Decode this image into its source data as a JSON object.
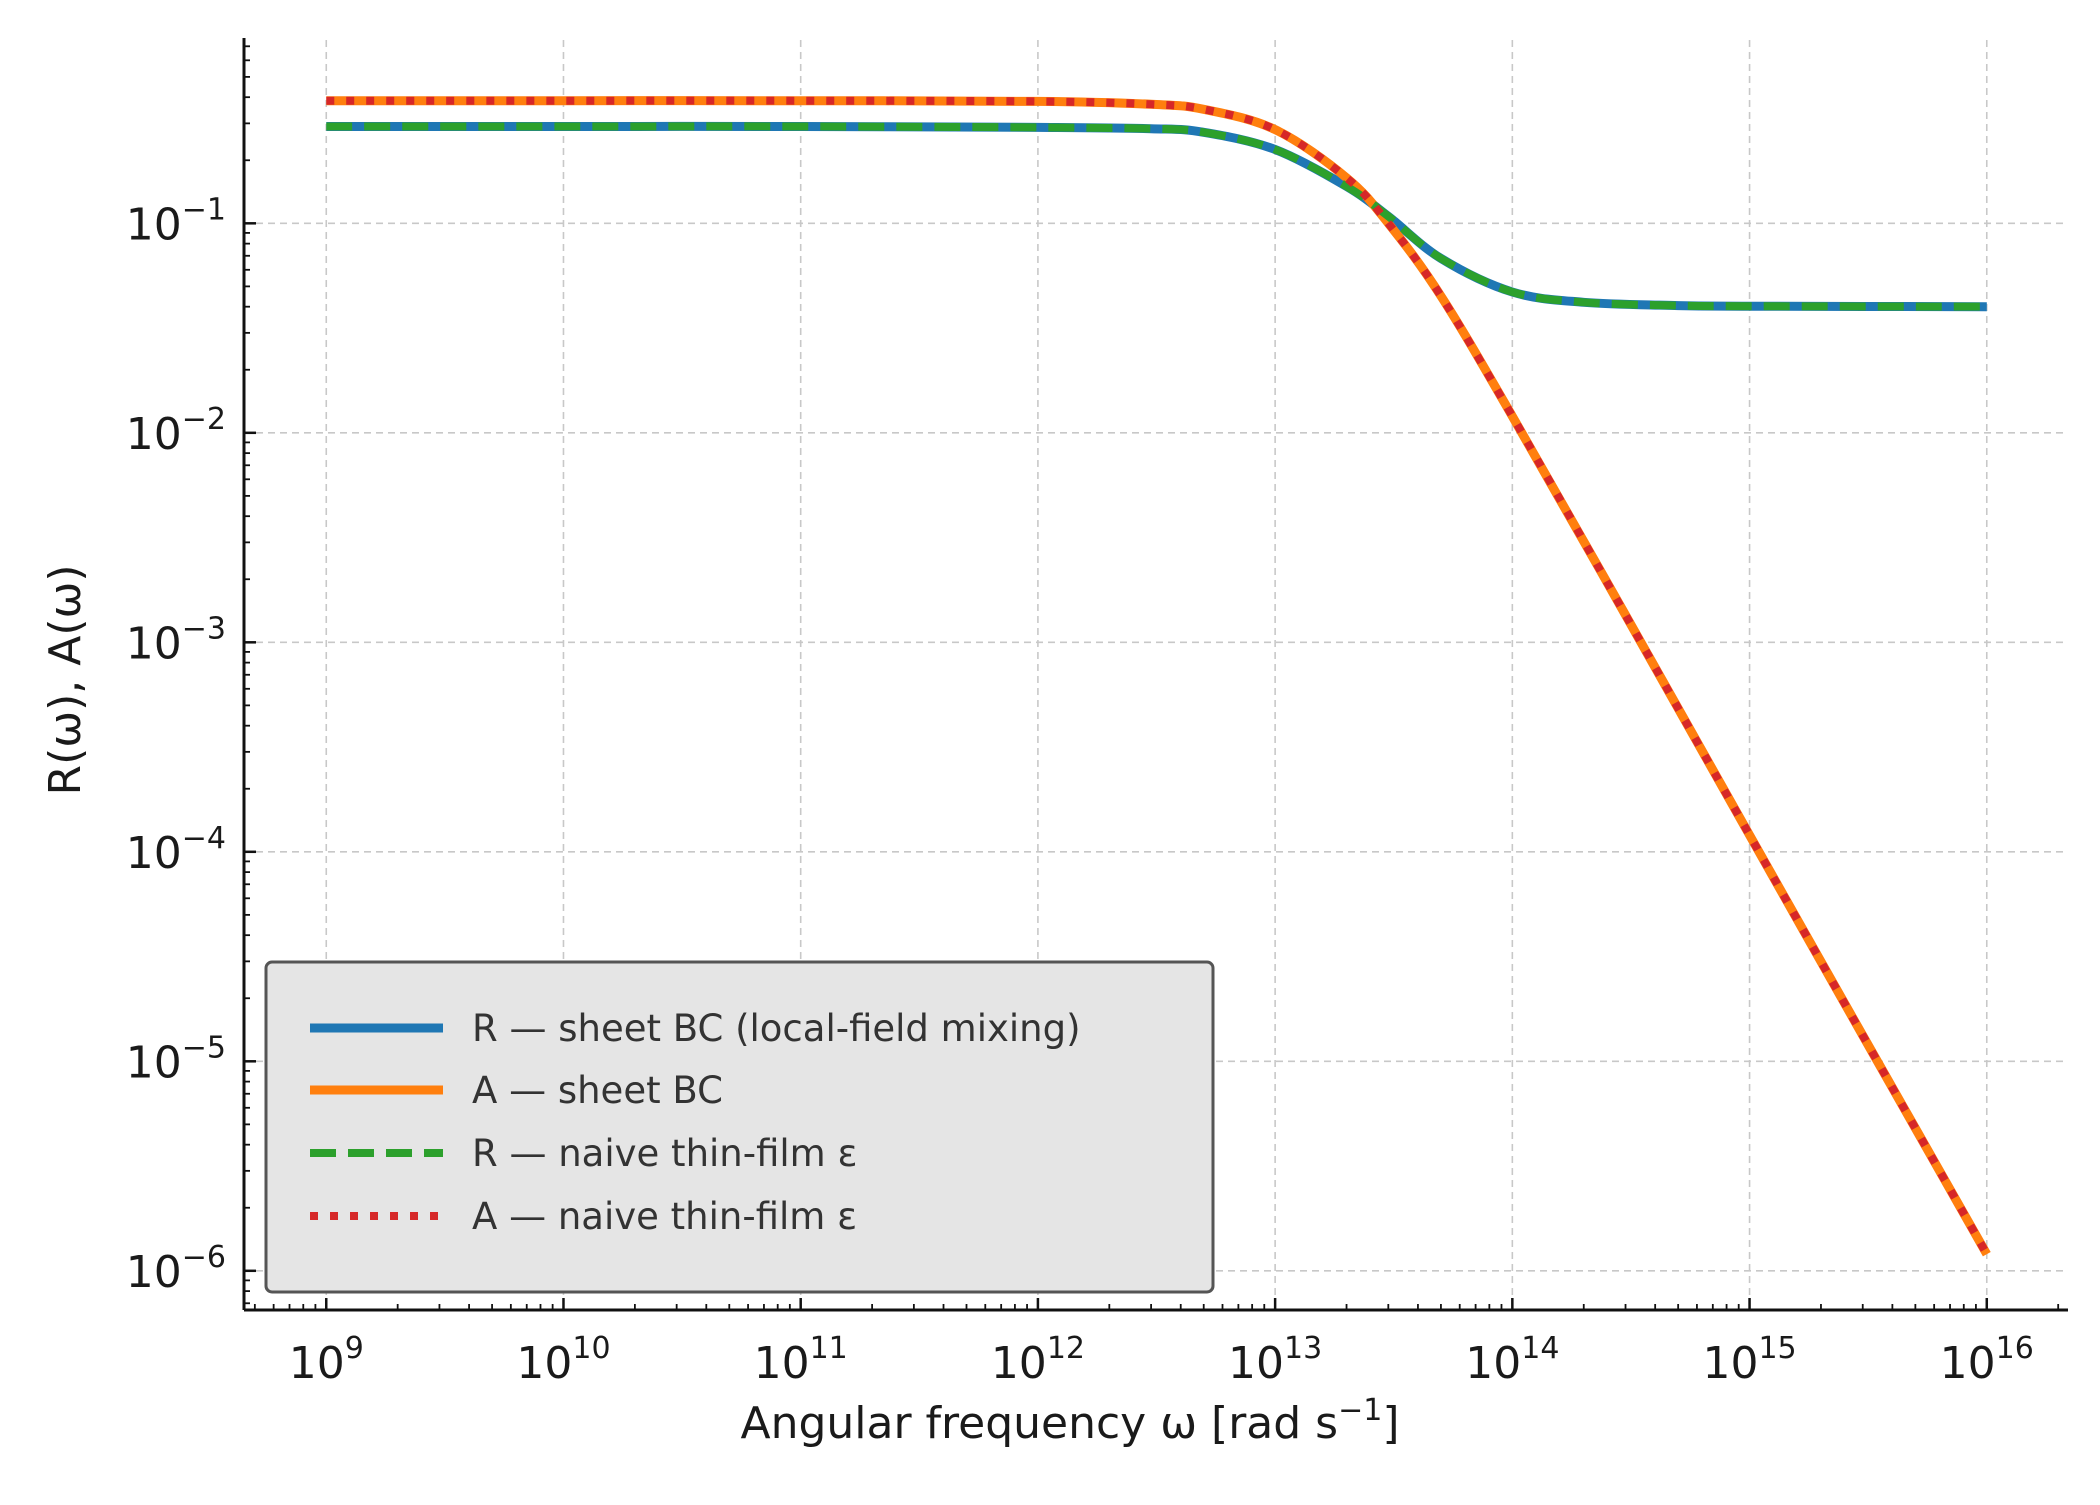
{
  "chart_data": {
    "type": "line",
    "xlabel": "Angular frequency ω [rad s",
    "xlabel_sup": "−1",
    "xlabel_tail": "]",
    "ylabel": "R(ω), A(ω)",
    "x_scale": "log",
    "y_scale": "log",
    "xlim": [
      450000000,
      22000000000000000
    ],
    "ylim": [
      6.5e-07,
      0.75
    ],
    "grid": true,
    "legend_position": "lower-left",
    "x_ticks": [
      {
        "value": 1000000000.0,
        "base": "10",
        "exp": "9"
      },
      {
        "value": 10000000000.0,
        "base": "10",
        "exp": "10"
      },
      {
        "value": 100000000000.0,
        "base": "10",
        "exp": "11"
      },
      {
        "value": 1000000000000.0,
        "base": "10",
        "exp": "12"
      },
      {
        "value": 10000000000000.0,
        "base": "10",
        "exp": "13"
      },
      {
        "value": 100000000000000.0,
        "base": "10",
        "exp": "14"
      },
      {
        "value": 1000000000000000.0,
        "base": "10",
        "exp": "15"
      },
      {
        "value": 1e+16,
        "base": "10",
        "exp": "16"
      }
    ],
    "y_ticks": [
      {
        "value": 0.1,
        "base": "10",
        "exp": "−1"
      },
      {
        "value": 0.01,
        "base": "10",
        "exp": "−2"
      },
      {
        "value": 0.001,
        "base": "10",
        "exp": "−3"
      },
      {
        "value": 0.0001,
        "base": "10",
        "exp": "−4"
      },
      {
        "value": 1e-05,
        "base": "10",
        "exp": "−5"
      },
      {
        "value": 1e-06,
        "base": "10",
        "exp": "−6"
      }
    ],
    "series": [
      {
        "name": "R — sheet BC (local-field mixing)",
        "color": "#1f77b4",
        "style": "solid",
        "x": [
          1000000000.0,
          10000000000.0,
          100000000000.0,
          1000000000000.0,
          3000000000000.0,
          5000000000000.0,
          10000000000000.0,
          20000000000000.0,
          30000000000000.0,
          50000000000000.0,
          100000000000000.0,
          200000000000000.0,
          500000000000000.0,
          1000000000000000.0,
          1e+16
        ],
        "y": [
          0.29,
          0.29,
          0.29,
          0.287,
          0.283,
          0.272,
          0.225,
          0.15,
          0.108,
          0.068,
          0.047,
          0.042,
          0.0405,
          0.0402,
          0.04
        ]
      },
      {
        "name": "A — sheet BC",
        "color": "#ff7f0e",
        "style": "solid",
        "x": [
          1000000000.0,
          10000000000.0,
          100000000000.0,
          1000000000000.0,
          3000000000000.0,
          5000000000000.0,
          10000000000000.0,
          20000000000000.0,
          30000000000000.0,
          50000000000000.0,
          100000000000000.0,
          300000000000000.0,
          1000000000000000.0,
          3000000000000000.0,
          1e+16
        ],
        "y": [
          0.385,
          0.385,
          0.385,
          0.382,
          0.37,
          0.35,
          0.28,
          0.165,
          0.1,
          0.045,
          0.012,
          0.00135,
          0.00012,
          1.33e-05,
          1.2e-06
        ]
      },
      {
        "name": "R — naive thin-film ε",
        "color": "#2ca02c",
        "style": "dashed",
        "x": [
          1000000000.0,
          10000000000.0,
          100000000000.0,
          1000000000000.0,
          3000000000000.0,
          5000000000000.0,
          10000000000000.0,
          20000000000000.0,
          30000000000000.0,
          50000000000000.0,
          100000000000000.0,
          200000000000000.0,
          500000000000000.0,
          1000000000000000.0,
          1e+16
        ],
        "y": [
          0.29,
          0.29,
          0.29,
          0.287,
          0.283,
          0.272,
          0.225,
          0.15,
          0.108,
          0.068,
          0.047,
          0.042,
          0.0405,
          0.0402,
          0.04
        ]
      },
      {
        "name": "A — naive thin-film ε",
        "color": "#d62728",
        "style": "dotted",
        "x": [
          1000000000.0,
          10000000000.0,
          100000000000.0,
          1000000000000.0,
          3000000000000.0,
          5000000000000.0,
          10000000000000.0,
          20000000000000.0,
          30000000000000.0,
          50000000000000.0,
          100000000000000.0,
          300000000000000.0,
          1000000000000000.0,
          3000000000000000.0,
          1e+16
        ],
        "y": [
          0.385,
          0.385,
          0.385,
          0.382,
          0.37,
          0.35,
          0.28,
          0.165,
          0.1,
          0.045,
          0.012,
          0.00135,
          0.00012,
          1.33e-05,
          1.2e-06
        ]
      }
    ]
  }
}
